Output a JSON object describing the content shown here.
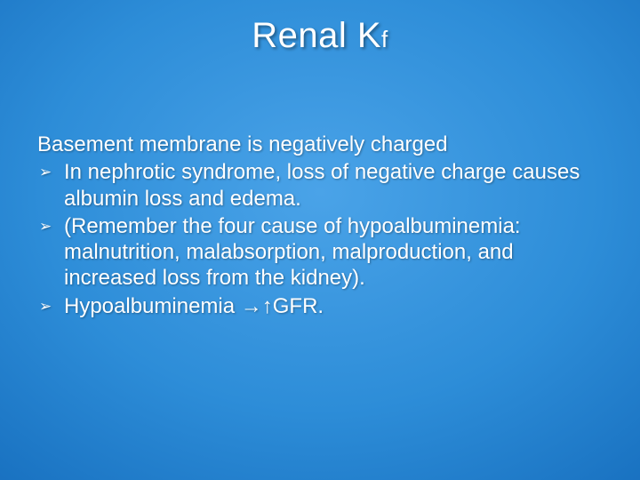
{
  "slide": {
    "title_main": "Renal K",
    "title_sub": "f",
    "lead": "Basement membrane is negatively charged",
    "bullets": [
      "In nephrotic syndrome, loss of negative charge causes albumin loss and edema.",
      "(Remember the four cause of hypoalbuminemia: malnutrition, malabsorption, malproduction, and increased loss from the kidney).",
      "Hypoalbuminemia →↑GFR."
    ],
    "bullet_marker": "➢",
    "colors": {
      "background_center": "#4aa3e8",
      "background_edge": "#084a91",
      "text": "#ffffff"
    },
    "fonts": {
      "title_size_pt": 40,
      "title_sub_size_pt": 26,
      "body_size_pt": 24
    }
  }
}
